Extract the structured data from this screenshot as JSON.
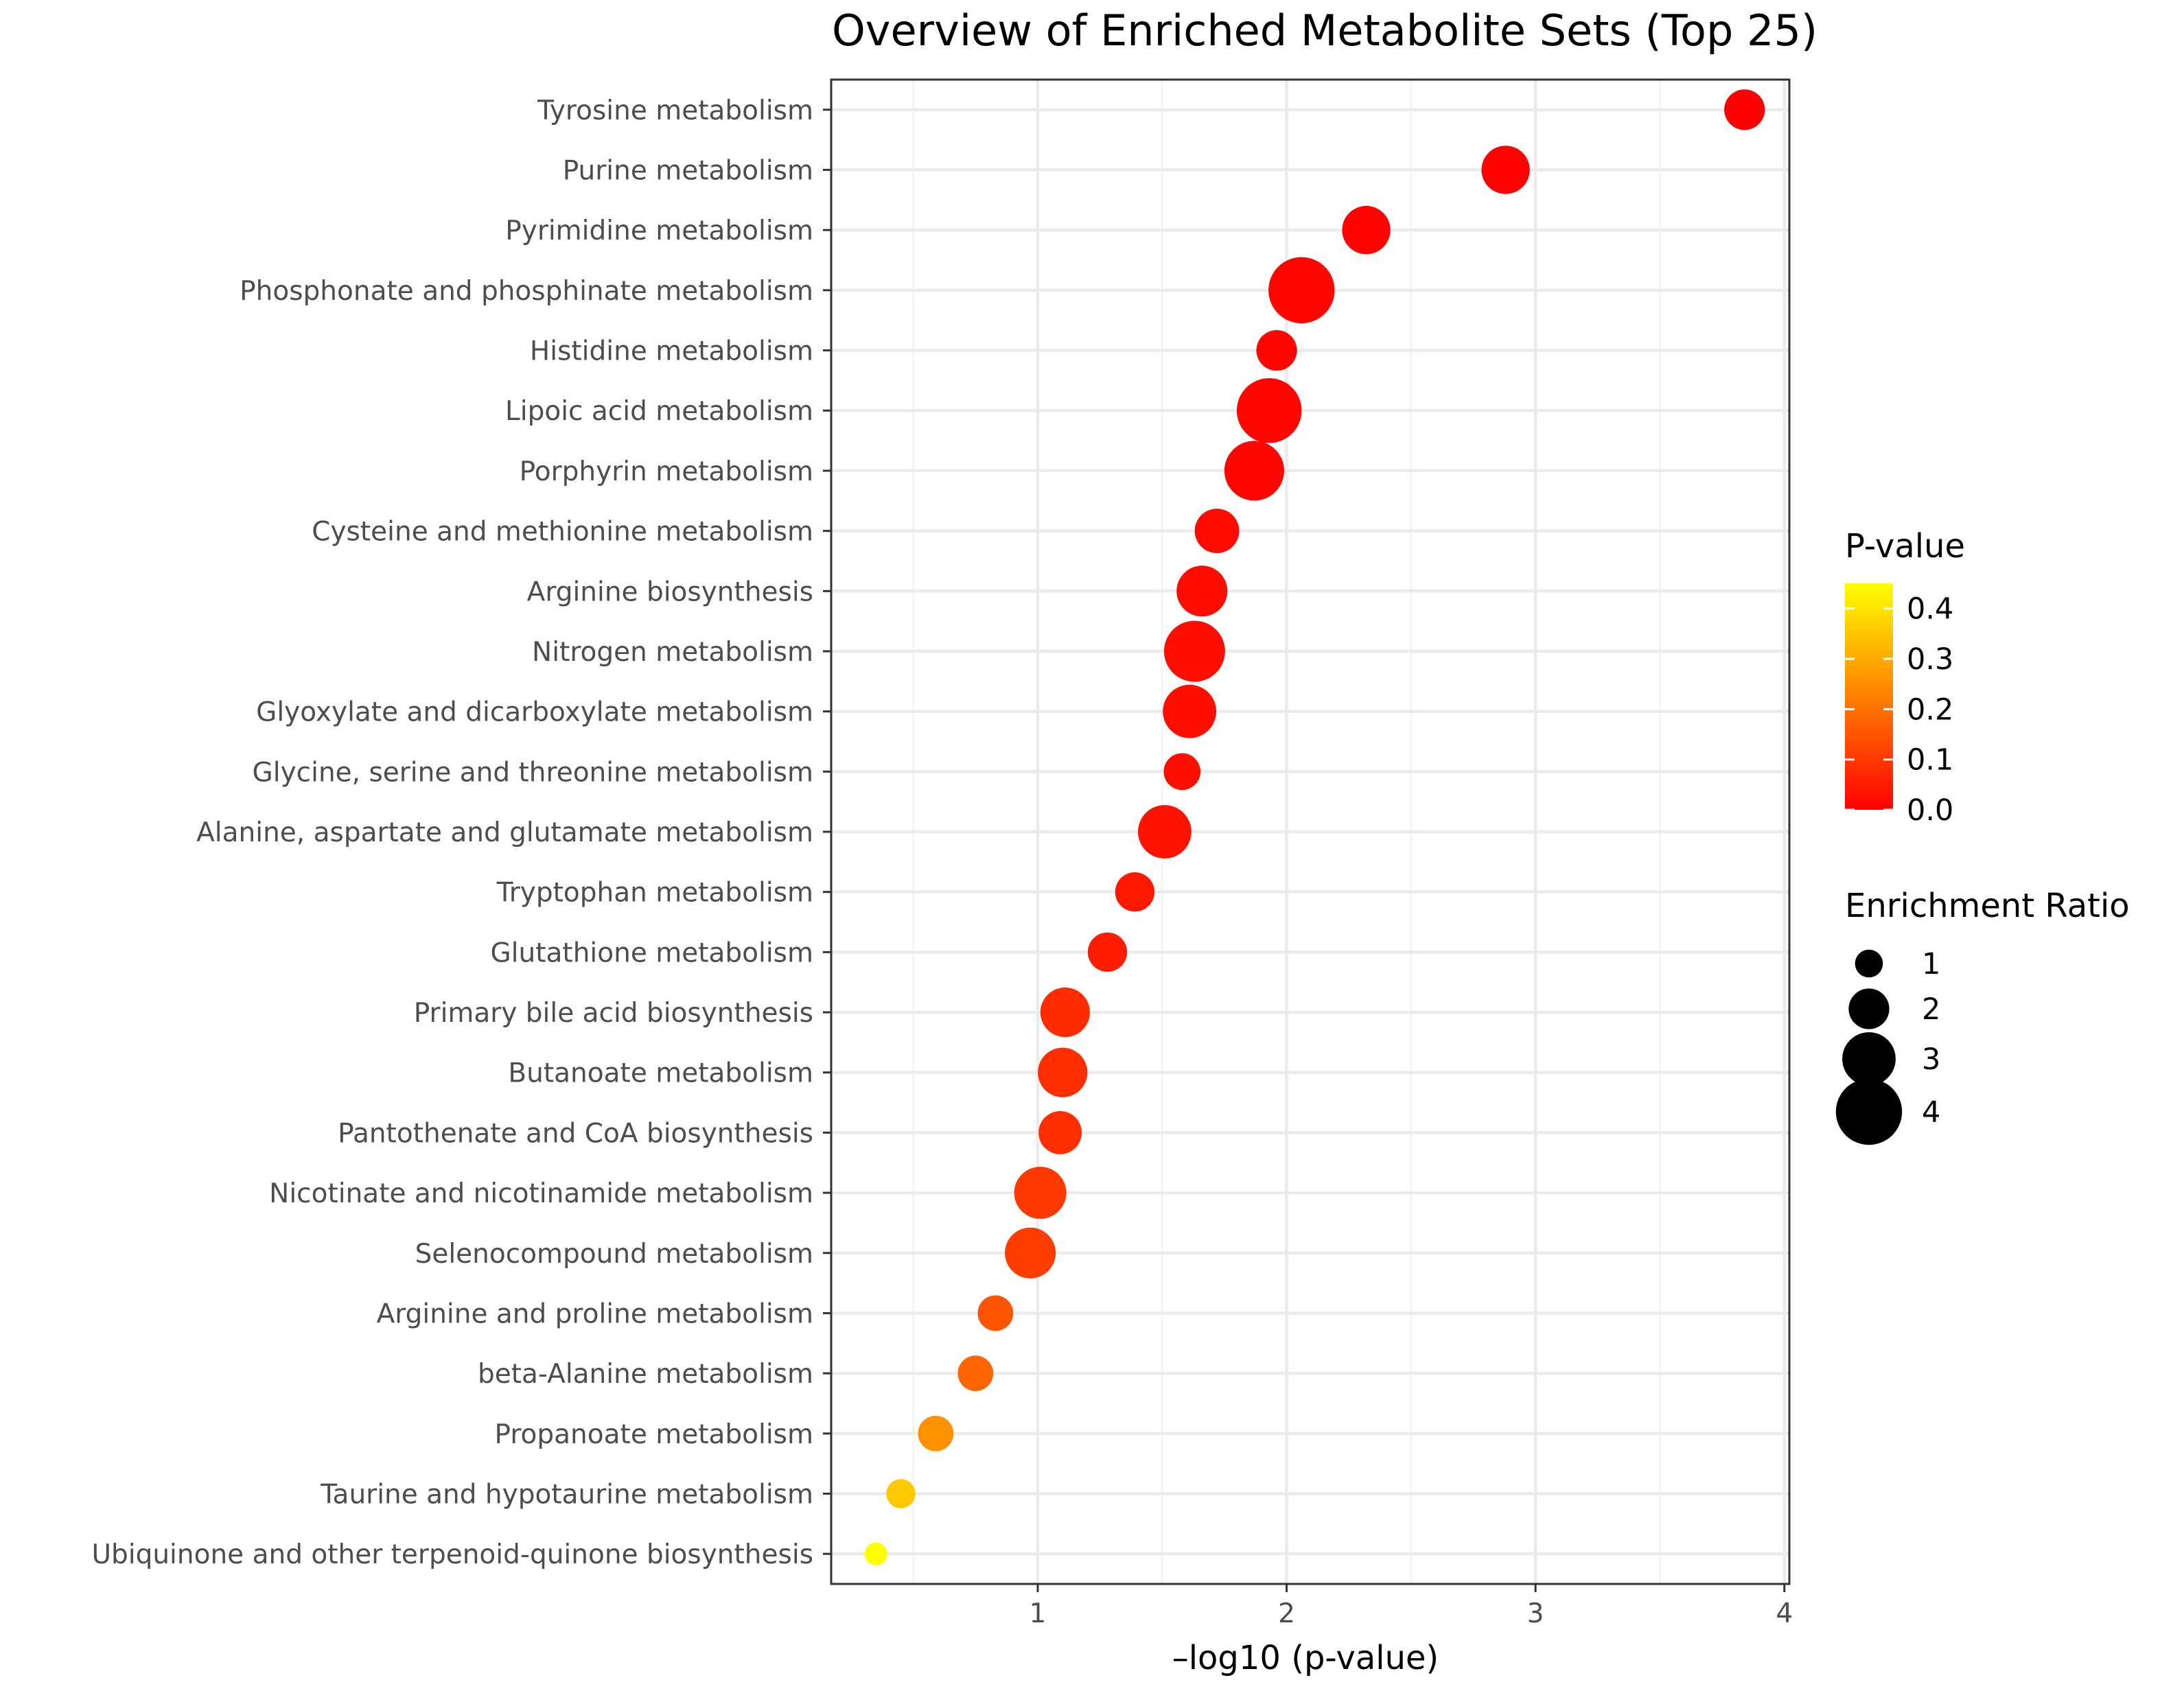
{
  "chart_data": {
    "type": "scatter",
    "title": "Overview of Enriched Metabolite Sets (Top 25)",
    "xlabel": "–log10 (p-value)",
    "ylabel": "",
    "xlim": [
      0.17,
      4.02
    ],
    "xticks": [
      1,
      2,
      3,
      4
    ],
    "grid": true,
    "categories": [
      "Tyrosine metabolism",
      "Purine metabolism",
      "Pyrimidine metabolism",
      "Phosphonate and phosphinate metabolism",
      "Histidine metabolism",
      "Lipoic acid metabolism",
      "Porphyrin metabolism",
      "Cysteine and methionine metabolism",
      "Arginine biosynthesis",
      "Nitrogen metabolism",
      "Glyoxylate and dicarboxylate metabolism",
      "Glycine, serine and threonine metabolism",
      "Alanine, aspartate and glutamate metabolism",
      "Tryptophan metabolism",
      "Glutathione metabolism",
      "Primary bile acid biosynthesis",
      "Butanoate metabolism",
      "Pantothenate and CoA biosynthesis",
      "Nicotinate and nicotinamide metabolism",
      "Selenocompound metabolism",
      "Arginine and proline metabolism",
      "beta-Alanine metabolism",
      "Propanoate metabolism",
      "Taurine and hypotaurine metabolism",
      "Ubiquinone and other terpenoid-quinone biosynthesis"
    ],
    "series": [
      {
        "x": [
          3.84,
          2.88,
          2.32,
          2.06,
          1.96,
          1.93,
          1.87,
          1.72,
          1.66,
          1.63,
          1.61,
          1.58,
          1.51,
          1.39,
          1.28,
          1.11,
          1.1,
          1.09,
          1.01,
          0.97,
          0.83,
          0.75,
          0.59,
          0.45,
          0.35
        ],
        "enrichment_ratio": [
          2.0,
          2.6,
          2.6,
          4.0,
          2.0,
          3.9,
          3.5,
          2.3,
          2.8,
          3.6,
          3.0,
          1.7,
          3.0,
          1.9,
          1.9,
          2.7,
          2.7,
          2.2,
          2.9,
          2.8,
          1.6,
          1.6,
          1.6,
          1.1,
          0.6
        ],
        "p_value": [
          0.00014,
          0.0013,
          0.0048,
          0.0087,
          0.011,
          0.012,
          0.013,
          0.019,
          0.022,
          0.023,
          0.025,
          0.026,
          0.031,
          0.041,
          0.052,
          0.078,
          0.079,
          0.081,
          0.098,
          0.107,
          0.148,
          0.178,
          0.257,
          0.355,
          0.447
        ]
      }
    ],
    "legend": {
      "placement": "right",
      "color_title": "P-value",
      "color_labels": [
        "0.4",
        "0.3",
        "0.2",
        "0.1",
        "0.0"
      ],
      "color_values": [
        0.4,
        0.3,
        0.2,
        0.1,
        0.0
      ],
      "color_range": [
        0.0,
        0.45
      ],
      "color_low": "#ff0000",
      "color_high": "#ffff00",
      "size_title": "Enrichment Ratio",
      "size_labels": [
        "1",
        "2",
        "3",
        "4"
      ],
      "size_values": [
        1,
        2,
        3,
        4
      ]
    }
  }
}
